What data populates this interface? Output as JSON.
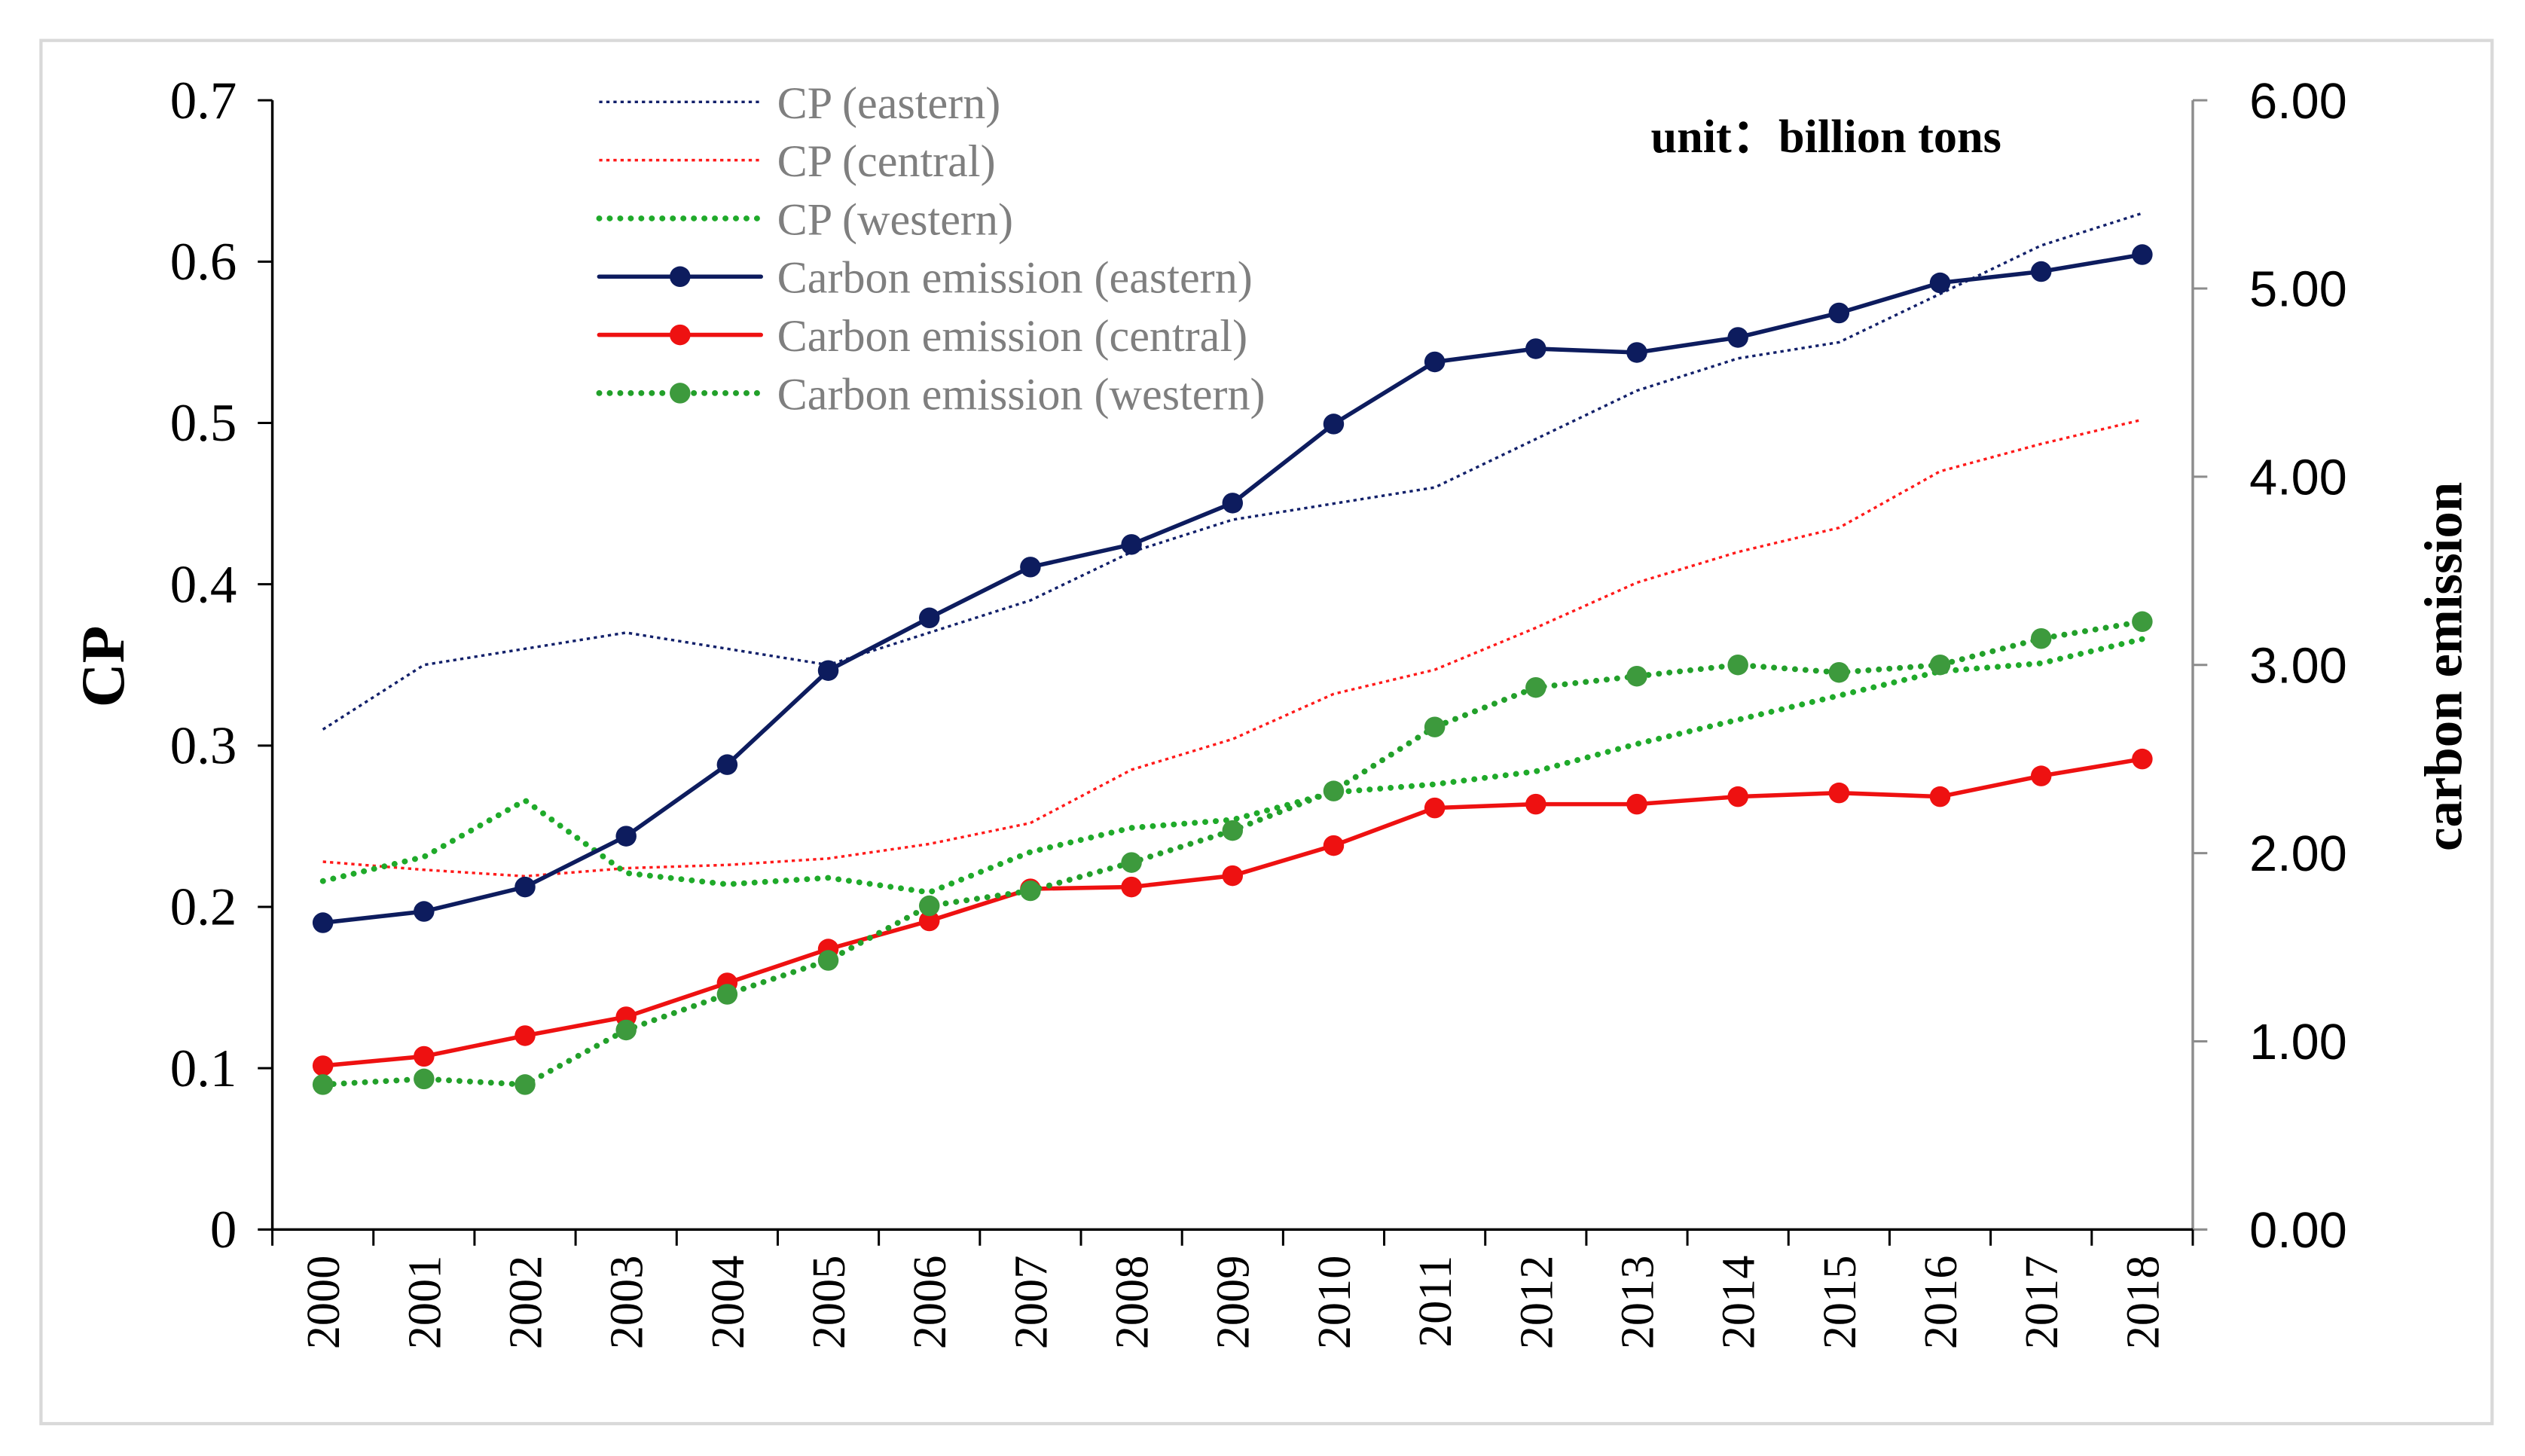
{
  "chart_data": {
    "type": "line",
    "title": "",
    "annotation": "unit：billion tons",
    "xlabel": "",
    "ylabel": "CP",
    "y2label": "carbon emission",
    "ylim": [
      0,
      0.7
    ],
    "y2lim": [
      0,
      6
    ],
    "y_ticks": [
      "0",
      "0.1",
      "0.2",
      "0.3",
      "0.4",
      "0.5",
      "0.6",
      "0.7"
    ],
    "y2_ticks": [
      "0.00",
      "1.00",
      "2.00",
      "3.00",
      "4.00",
      "5.00",
      "6.00"
    ],
    "grid": false,
    "legend_position": "top-left",
    "categories": [
      "2000",
      "2001",
      "2002",
      "2003",
      "2004",
      "2005",
      "2006",
      "2007",
      "2008",
      "2009",
      "2010",
      "2011",
      "2012",
      "2013",
      "2014",
      "2015",
      "2016",
      "2017",
      "2018"
    ],
    "series": [
      {
        "name": "CP (eastern)",
        "y_axis": 1,
        "color": "#12206a",
        "dotted": true,
        "marker": false,
        "values": [
          0.31,
          0.35,
          0.36,
          0.37,
          0.36,
          0.35,
          0.37,
          0.39,
          0.42,
          0.44,
          0.45,
          0.46,
          0.49,
          0.52,
          0.54,
          0.55,
          0.58,
          0.61,
          0.63
        ]
      },
      {
        "name": "CP (central)",
        "y_axis": 1,
        "color": "#ff1a1a",
        "dotted": true,
        "marker": false,
        "values": [
          0.228,
          0.223,
          0.219,
          0.224,
          0.226,
          0.23,
          0.239,
          0.252,
          0.285,
          0.304,
          0.332,
          0.347,
          0.373,
          0.401,
          0.42,
          0.435,
          0.47,
          0.487,
          0.502
        ]
      },
      {
        "name": "CP (western)",
        "y_axis": 1,
        "color": "#1faa2a",
        "dotted": true,
        "marker": false,
        "values": [
          0.216,
          0.231,
          0.266,
          0.221,
          0.214,
          0.218,
          0.209,
          0.234,
          0.249,
          0.254,
          0.271,
          0.276,
          0.284,
          0.301,
          0.316,
          0.331,
          0.346,
          0.351,
          0.366
        ]
      },
      {
        "name": "Carbon emission (eastern)",
        "y_axis": 2,
        "color": "#0d1c5e",
        "dotted": false,
        "marker": true,
        "values": [
          1.63,
          1.69,
          1.82,
          2.09,
          2.47,
          2.97,
          3.25,
          3.52,
          3.64,
          3.86,
          4.28,
          4.61,
          4.68,
          4.66,
          4.74,
          4.87,
          5.03,
          5.09,
          5.18
        ]
      },
      {
        "name": "Carbon emission (central)",
        "y_axis": 2,
        "color": "#ee1111",
        "dotted": false,
        "marker": true,
        "values": [
          0.87,
          0.92,
          1.03,
          1.13,
          1.31,
          1.49,
          1.64,
          1.81,
          1.82,
          1.88,
          2.04,
          2.24,
          2.26,
          2.26,
          2.3,
          2.32,
          2.3,
          2.41,
          2.5
        ]
      },
      {
        "name": "Carbon emission (western)",
        "y_axis": 2,
        "color": "#22a02a",
        "marker_color": "#3d9a3d",
        "dotted": true,
        "marker": true,
        "values": [
          0.77,
          0.8,
          0.77,
          1.06,
          1.25,
          1.43,
          1.72,
          1.8,
          1.95,
          2.12,
          2.33,
          2.67,
          2.88,
          2.94,
          3.0,
          2.96,
          3.0,
          3.14,
          3.23
        ]
      }
    ]
  },
  "colors": {
    "frame": "#d9d9d9",
    "axis": "#000000",
    "secondary_axis": "#8c8c8c",
    "legend_text": "#7f7f7f",
    "text": "#000000"
  }
}
